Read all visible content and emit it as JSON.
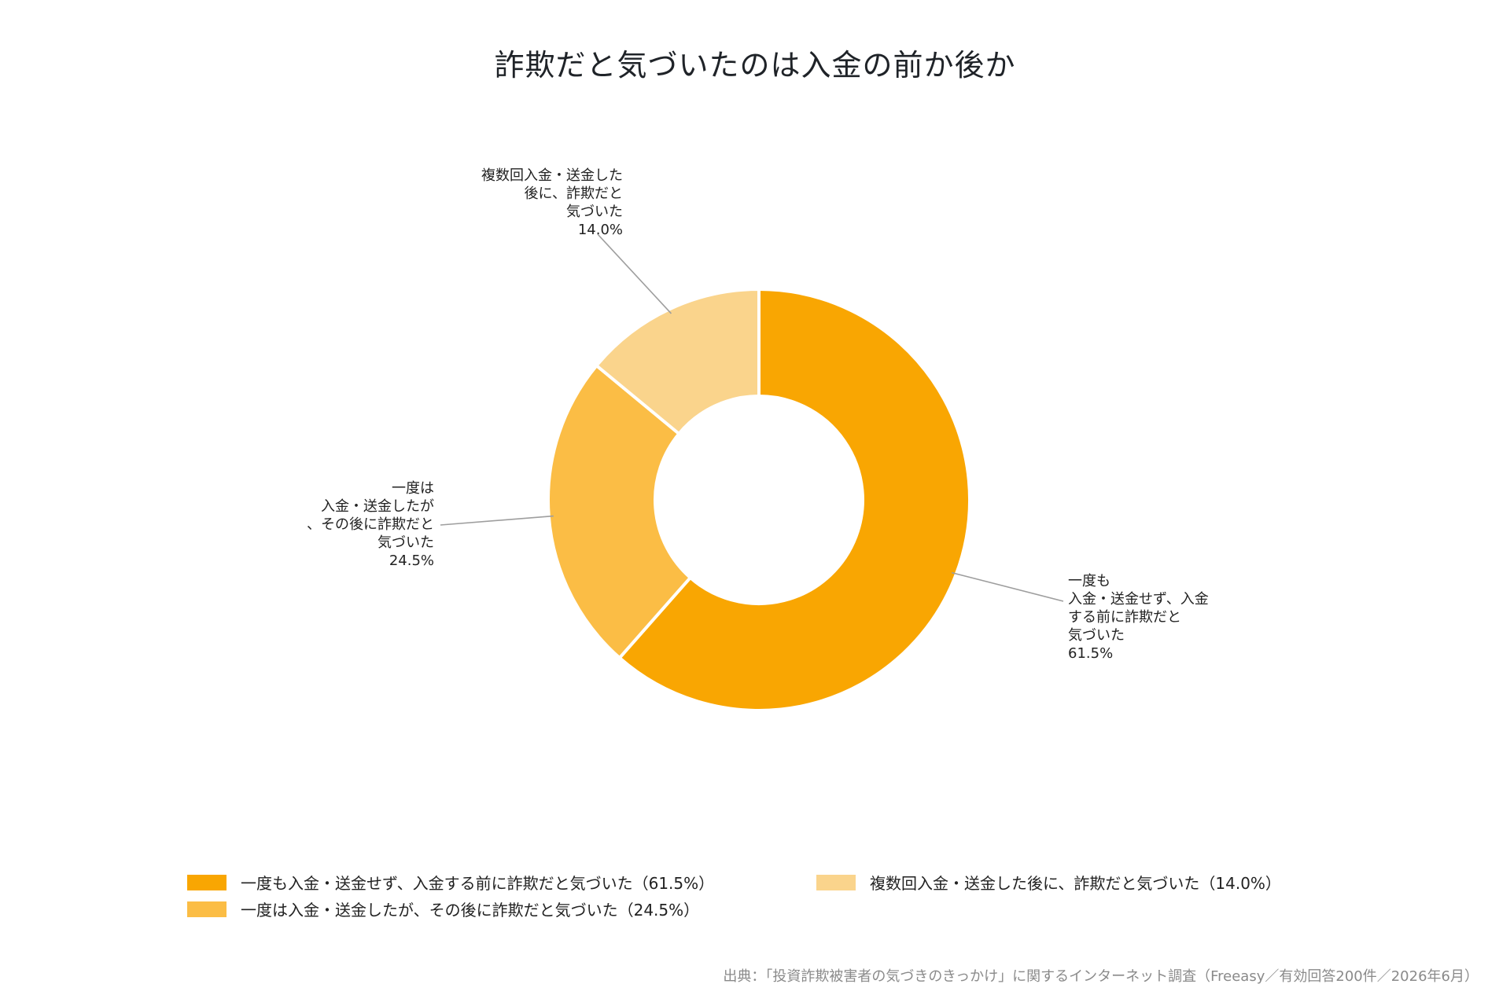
{
  "chart_data": {
    "type": "pie",
    "title": "詐欺だと気づいたのは入金の前か後か",
    "slices": [
      {
        "label": "一度も入金・送金せず、入金する前に詐欺だと気づいた",
        "label_lines": [
          "一度も",
          "入金・送金せず、入金",
          "する前に詐欺だと",
          "気づいた",
          "61.5%"
        ],
        "legend": "一度も入金・送金せず、入金する前に詐欺だと気づいた（61.5%）",
        "value": 61.5,
        "color": "#F9A602"
      },
      {
        "label": "一度は入金・送金したが、その後に詐欺だと気づいた",
        "label_lines": [
          "一度は",
          "入金・送金したが",
          "、その後に詐欺だと",
          "気づいた",
          "24.5%"
        ],
        "legend": "一度は入金・送金したが、その後に詐欺だと気づいた（24.5%）",
        "value": 24.5,
        "color": "#FBBD45"
      },
      {
        "label": "複数回入金・送金した後に、詐欺だと気づいた",
        "label_lines": [
          "複数回入金・送金した",
          "後に、詐欺だと",
          "気づいた",
          "14.0%"
        ],
        "legend": "複数回入金・送金した後に、詐欺だと気づいた（14.0%）",
        "value": 14.0,
        "color": "#FAD48C"
      }
    ],
    "legend_position": "bottom",
    "donut": true
  },
  "source": "出典：「投資詐欺被害者の気づきのきっかけ」に関するインターネット調査（Freeasy／有効回答200件／2026年6月）"
}
